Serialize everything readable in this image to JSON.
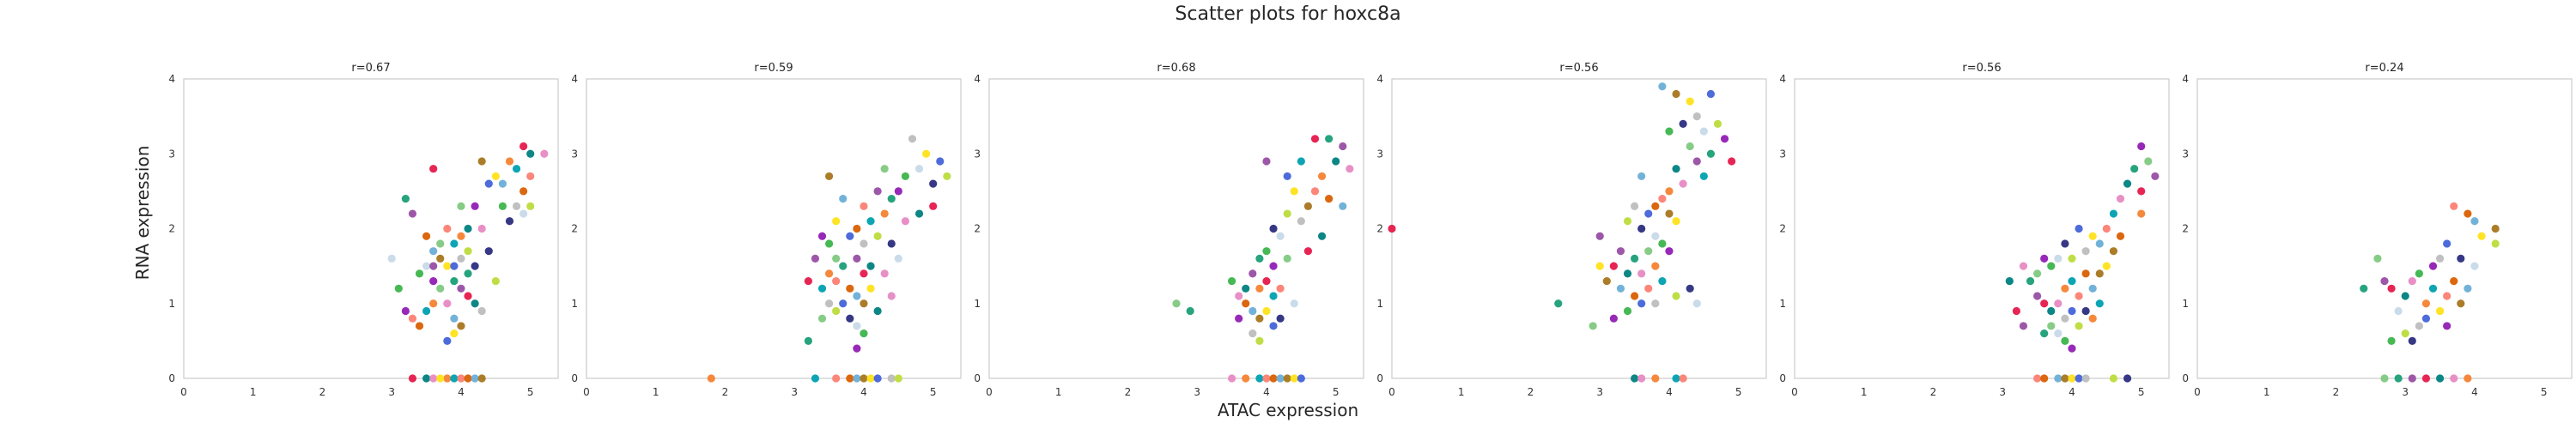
{
  "title": "Scatter plots for hoxc8a",
  "xlabel": "ATAC expression",
  "ylabel": "RNA expression",
  "palette": [
    "#e6194b",
    "#f58231",
    "#d95f02",
    "#ffe119",
    "#bcdc3c",
    "#3cb44b",
    "#1b9e77",
    "#008080",
    "#00a0b0",
    "#6baed6",
    "#4363d8",
    "#2b2d7f",
    "#911eb4",
    "#984ea3",
    "#e78ac3",
    "#fb8072",
    "#a6761d",
    "#bdbdbd",
    "#c7d9e8",
    "#7fc97f"
  ],
  "chart_data": [
    {
      "type": "scatter",
      "title": "r=0.67",
      "xlim": [
        0,
        5.4
      ],
      "ylim": [
        0,
        4
      ],
      "xticks": [
        0,
        1,
        2,
        3,
        4,
        5
      ],
      "yticks": [
        0,
        1,
        2,
        3,
        4
      ],
      "points": [
        [
          4.9,
          3.1
        ],
        [
          5.0,
          3.0
        ],
        [
          5.2,
          3.0
        ],
        [
          4.7,
          2.9
        ],
        [
          4.8,
          2.8
        ],
        [
          5.0,
          2.7
        ],
        [
          4.9,
          2.5
        ],
        [
          4.6,
          2.6
        ],
        [
          4.3,
          2.9
        ],
        [
          4.5,
          2.7
        ],
        [
          4.4,
          2.6
        ],
        [
          4.8,
          2.3
        ],
        [
          5.0,
          2.3
        ],
        [
          4.7,
          2.1
        ],
        [
          4.9,
          2.2
        ],
        [
          4.6,
          2.3
        ],
        [
          4.2,
          2.3
        ],
        [
          4.0,
          2.3
        ],
        [
          3.2,
          2.4
        ],
        [
          3.3,
          2.2
        ],
        [
          3.6,
          2.8
        ],
        [
          4.1,
          2.0
        ],
        [
          4.3,
          2.0
        ],
        [
          4.0,
          1.9
        ],
        [
          3.9,
          1.8
        ],
        [
          3.8,
          2.0
        ],
        [
          3.5,
          1.9
        ],
        [
          3.6,
          1.7
        ],
        [
          3.7,
          1.6
        ],
        [
          3.8,
          1.5
        ],
        [
          3.9,
          1.5
        ],
        [
          4.0,
          1.6
        ],
        [
          4.1,
          1.7
        ],
        [
          4.2,
          1.5
        ],
        [
          3.5,
          1.5
        ],
        [
          3.4,
          1.4
        ],
        [
          3.6,
          1.3
        ],
        [
          3.7,
          1.2
        ],
        [
          3.9,
          1.3
        ],
        [
          4.0,
          1.2
        ],
        [
          4.1,
          1.1
        ],
        [
          4.2,
          1.0
        ],
        [
          3.8,
          1.0
        ],
        [
          3.6,
          1.0
        ],
        [
          3.5,
          0.9
        ],
        [
          3.3,
          0.8
        ],
        [
          3.4,
          0.7
        ],
        [
          3.9,
          0.8
        ],
        [
          4.0,
          0.7
        ],
        [
          3.9,
          0.6
        ],
        [
          3.8,
          0.5
        ],
        [
          4.3,
          0.9
        ],
        [
          4.5,
          1.3
        ],
        [
          4.4,
          1.7
        ],
        [
          3.0,
          1.6
        ],
        [
          3.1,
          1.2
        ],
        [
          3.2,
          0.9
        ],
        [
          3.7,
          1.8
        ],
        [
          4.1,
          1.4
        ],
        [
          3.6,
          1.5
        ],
        [
          3.3,
          0.0
        ],
        [
          3.5,
          0.0
        ],
        [
          3.6,
          0.0
        ],
        [
          3.8,
          0.0
        ],
        [
          3.9,
          0.0
        ],
        [
          4.0,
          0.0
        ],
        [
          4.1,
          0.0
        ],
        [
          4.2,
          0.0
        ],
        [
          4.3,
          0.0
        ],
        [
          3.7,
          0.0
        ]
      ]
    },
    {
      "type": "scatter",
      "title": "r=0.59",
      "xlim": [
        0,
        5.4
      ],
      "ylim": [
        0,
        4
      ],
      "xticks": [
        0,
        1,
        2,
        3,
        4,
        5
      ],
      "yticks": [
        0,
        1,
        2,
        3,
        4
      ],
      "points": [
        [
          4.9,
          3.0
        ],
        [
          5.1,
          2.9
        ],
        [
          4.7,
          3.2
        ],
        [
          5.2,
          2.7
        ],
        [
          5.0,
          2.6
        ],
        [
          4.8,
          2.8
        ],
        [
          4.6,
          2.7
        ],
        [
          4.5,
          2.5
        ],
        [
          4.3,
          2.8
        ],
        [
          4.4,
          2.4
        ],
        [
          4.2,
          2.5
        ],
        [
          5.0,
          2.3
        ],
        [
          4.8,
          2.2
        ],
        [
          4.6,
          2.1
        ],
        [
          4.3,
          2.2
        ],
        [
          4.1,
          2.1
        ],
        [
          4.0,
          2.3
        ],
        [
          3.9,
          2.0
        ],
        [
          3.7,
          2.4
        ],
        [
          3.5,
          2.7
        ],
        [
          3.6,
          2.1
        ],
        [
          3.8,
          1.9
        ],
        [
          4.0,
          1.8
        ],
        [
          4.2,
          1.9
        ],
        [
          4.4,
          1.8
        ],
        [
          4.5,
          1.6
        ],
        [
          3.5,
          1.8
        ],
        [
          3.4,
          1.9
        ],
        [
          3.6,
          1.6
        ],
        [
          3.7,
          1.5
        ],
        [
          3.9,
          1.6
        ],
        [
          4.0,
          1.4
        ],
        [
          4.1,
          1.5
        ],
        [
          4.3,
          1.4
        ],
        [
          3.5,
          1.4
        ],
        [
          3.4,
          1.2
        ],
        [
          3.6,
          1.3
        ],
        [
          3.8,
          1.2
        ],
        [
          3.9,
          1.1
        ],
        [
          4.0,
          1.0
        ],
        [
          4.1,
          1.2
        ],
        [
          3.7,
          1.0
        ],
        [
          3.5,
          1.0
        ],
        [
          3.6,
          0.9
        ],
        [
          3.8,
          0.8
        ],
        [
          3.9,
          0.7
        ],
        [
          4.0,
          0.6
        ],
        [
          3.9,
          0.4
        ],
        [
          3.4,
          0.8
        ],
        [
          3.2,
          0.5
        ],
        [
          3.3,
          1.6
        ],
        [
          3.2,
          1.3
        ],
        [
          4.2,
          0.9
        ],
        [
          4.4,
          1.1
        ],
        [
          1.8,
          0.0
        ],
        [
          3.3,
          0.0
        ],
        [
          3.6,
          0.0
        ],
        [
          3.8,
          0.0
        ],
        [
          3.9,
          0.0
        ],
        [
          4.0,
          0.0
        ],
        [
          4.1,
          0.0
        ],
        [
          4.2,
          0.0
        ],
        [
          4.4,
          0.0
        ],
        [
          4.5,
          0.0
        ]
      ]
    },
    {
      "type": "scatter",
      "title": "r=0.68",
      "xlim": [
        0,
        5.4
      ],
      "ylim": [
        0,
        4
      ],
      "xticks": [
        0,
        1,
        2,
        3,
        4,
        5
      ],
      "yticks": [
        0,
        1,
        2,
        3,
        4
      ],
      "points": [
        [
          4.9,
          3.2
        ],
        [
          5.1,
          3.1
        ],
        [
          4.7,
          3.2
        ],
        [
          5.0,
          2.9
        ],
        [
          5.2,
          2.8
        ],
        [
          4.8,
          2.7
        ],
        [
          4.5,
          2.9
        ],
        [
          4.7,
          2.5
        ],
        [
          4.9,
          2.4
        ],
        [
          5.1,
          2.3
        ],
        [
          4.6,
          2.3
        ],
        [
          4.4,
          2.5
        ],
        [
          4.3,
          2.7
        ],
        [
          4.5,
          2.1
        ],
        [
          4.3,
          2.2
        ],
        [
          4.1,
          2.0
        ],
        [
          4.2,
          1.9
        ],
        [
          4.0,
          1.7
        ],
        [
          4.1,
          1.5
        ],
        [
          4.3,
          1.6
        ],
        [
          3.9,
          1.6
        ],
        [
          3.8,
          1.4
        ],
        [
          4.0,
          1.3
        ],
        [
          3.7,
          1.2
        ],
        [
          3.6,
          1.1
        ],
        [
          3.9,
          1.2
        ],
        [
          4.1,
          1.1
        ],
        [
          4.2,
          1.2
        ],
        [
          3.7,
          1.0
        ],
        [
          3.8,
          0.9
        ],
        [
          3.9,
          0.8
        ],
        [
          4.0,
          0.9
        ],
        [
          4.1,
          0.7
        ],
        [
          3.8,
          0.6
        ],
        [
          3.9,
          0.5
        ],
        [
          4.2,
          0.8
        ],
        [
          4.4,
          1.0
        ],
        [
          3.5,
          1.3
        ],
        [
          3.6,
          0.8
        ],
        [
          2.7,
          1.0
        ],
        [
          2.9,
          0.9
        ],
        [
          4.0,
          2.9
        ],
        [
          4.6,
          1.7
        ],
        [
          4.8,
          1.9
        ],
        [
          3.5,
          0.0
        ],
        [
          3.7,
          0.0
        ],
        [
          3.9,
          0.0
        ],
        [
          4.0,
          0.0
        ],
        [
          4.1,
          0.0
        ],
        [
          4.2,
          0.0
        ],
        [
          4.3,
          0.0
        ],
        [
          4.4,
          0.0
        ],
        [
          4.5,
          0.0
        ]
      ]
    },
    {
      "type": "scatter",
      "title": "r=0.56",
      "xlim": [
        0,
        5.4
      ],
      "ylim": [
        0,
        4
      ],
      "xticks": [
        0,
        1,
        2,
        3,
        4,
        5
      ],
      "yticks": [
        0,
        1,
        2,
        3,
        4
      ],
      "points": [
        [
          3.9,
          3.9
        ],
        [
          4.1,
          3.8
        ],
        [
          4.3,
          3.7
        ],
        [
          4.6,
          3.8
        ],
        [
          4.4,
          3.5
        ],
        [
          4.7,
          3.4
        ],
        [
          4.2,
          3.4
        ],
        [
          4.5,
          3.3
        ],
        [
          4.0,
          3.3
        ],
        [
          4.8,
          3.2
        ],
        [
          4.3,
          3.1
        ],
        [
          4.6,
          3.0
        ],
        [
          4.4,
          2.9
        ],
        [
          4.9,
          2.9
        ],
        [
          4.1,
          2.8
        ],
        [
          4.2,
          2.6
        ],
        [
          4.0,
          2.5
        ],
        [
          4.5,
          2.7
        ],
        [
          3.9,
          2.4
        ],
        [
          3.8,
          2.3
        ],
        [
          3.6,
          2.7
        ],
        [
          4.0,
          2.2
        ],
        [
          4.1,
          2.1
        ],
        [
          3.7,
          2.2
        ],
        [
          3.5,
          2.3
        ],
        [
          3.4,
          2.1
        ],
        [
          3.6,
          2.0
        ],
        [
          3.8,
          1.9
        ],
        [
          3.9,
          1.8
        ],
        [
          4.0,
          1.7
        ],
        [
          3.7,
          1.7
        ],
        [
          3.5,
          1.6
        ],
        [
          3.3,
          1.7
        ],
        [
          3.2,
          1.5
        ],
        [
          3.4,
          1.4
        ],
        [
          3.6,
          1.4
        ],
        [
          3.8,
          1.5
        ],
        [
          3.9,
          1.3
        ],
        [
          3.7,
          1.2
        ],
        [
          3.5,
          1.1
        ],
        [
          3.3,
          1.2
        ],
        [
          3.1,
          1.3
        ],
        [
          3.0,
          1.5
        ],
        [
          3.6,
          1.0
        ],
        [
          3.8,
          1.0
        ],
        [
          4.1,
          1.1
        ],
        [
          4.3,
          1.2
        ],
        [
          4.4,
          1.0
        ],
        [
          3.4,
          0.9
        ],
        [
          3.2,
          0.8
        ],
        [
          2.9,
          0.7
        ],
        [
          2.4,
          1.0
        ],
        [
          3.0,
          1.9
        ],
        [
          0.0,
          2.0
        ],
        [
          3.5,
          0.0
        ],
        [
          3.6,
          0.0
        ],
        [
          3.8,
          0.0
        ],
        [
          4.1,
          0.0
        ],
        [
          4.2,
          0.0
        ]
      ]
    },
    {
      "type": "scatter",
      "title": "r=0.56",
      "xlim": [
        0,
        5.4
      ],
      "ylim": [
        0,
        4
      ],
      "xticks": [
        0,
        1,
        2,
        3,
        4,
        5
      ],
      "yticks": [
        0,
        1,
        2,
        3,
        4
      ],
      "points": [
        [
          5.0,
          3.1
        ],
        [
          5.1,
          2.9
        ],
        [
          4.9,
          2.8
        ],
        [
          5.2,
          2.7
        ],
        [
          5.0,
          2.5
        ],
        [
          4.8,
          2.6
        ],
        [
          4.7,
          2.4
        ],
        [
          5.0,
          2.2
        ],
        [
          4.6,
          2.2
        ],
        [
          4.5,
          2.0
        ],
        [
          4.7,
          1.9
        ],
        [
          4.4,
          1.8
        ],
        [
          4.6,
          1.7
        ],
        [
          4.3,
          1.9
        ],
        [
          4.1,
          2.0
        ],
        [
          4.2,
          1.7
        ],
        [
          4.0,
          1.6
        ],
        [
          3.9,
          1.8
        ],
        [
          3.8,
          1.6
        ],
        [
          3.7,
          1.5
        ],
        [
          3.6,
          1.6
        ],
        [
          3.5,
          1.4
        ],
        [
          3.4,
          1.3
        ],
        [
          3.5,
          1.1
        ],
        [
          3.6,
          1.0
        ],
        [
          3.7,
          0.9
        ],
        [
          3.8,
          1.0
        ],
        [
          3.9,
          1.2
        ],
        [
          4.0,
          1.3
        ],
        [
          4.1,
          1.1
        ],
        [
          4.2,
          1.4
        ],
        [
          4.3,
          1.2
        ],
        [
          4.4,
          1.4
        ],
        [
          4.5,
          1.5
        ],
        [
          4.0,
          0.9
        ],
        [
          3.9,
          0.8
        ],
        [
          4.1,
          0.7
        ],
        [
          4.2,
          0.9
        ],
        [
          3.8,
          0.6
        ],
        [
          3.9,
          0.5
        ],
        [
          4.0,
          0.4
        ],
        [
          3.7,
          0.7
        ],
        [
          3.6,
          0.6
        ],
        [
          3.3,
          0.7
        ],
        [
          3.2,
          0.9
        ],
        [
          3.1,
          1.3
        ],
        [
          3.3,
          1.5
        ],
        [
          4.3,
          0.8
        ],
        [
          4.4,
          1.0
        ],
        [
          3.5,
          0.0
        ],
        [
          3.6,
          0.0
        ],
        [
          3.8,
          0.0
        ],
        [
          3.9,
          0.0
        ],
        [
          4.0,
          0.0
        ],
        [
          4.1,
          0.0
        ],
        [
          4.2,
          0.0
        ],
        [
          4.6,
          0.0
        ],
        [
          4.8,
          0.0
        ]
      ]
    },
    {
      "type": "scatter",
      "title": "r=0.24",
      "xlim": [
        0,
        5.4
      ],
      "ylim": [
        0,
        4
      ],
      "xticks": [
        0,
        1,
        2,
        3,
        4,
        5
      ],
      "yticks": [
        0,
        1,
        2,
        3,
        4
      ],
      "points": [
        [
          3.7,
          2.3
        ],
        [
          3.9,
          2.2
        ],
        [
          4.0,
          2.1
        ],
        [
          4.3,
          2.0
        ],
        [
          4.1,
          1.9
        ],
        [
          3.6,
          1.8
        ],
        [
          3.5,
          1.6
        ],
        [
          4.3,
          1.8
        ],
        [
          3.8,
          1.6
        ],
        [
          4.0,
          1.5
        ],
        [
          3.2,
          1.4
        ],
        [
          3.4,
          1.5
        ],
        [
          2.6,
          1.6
        ],
        [
          2.4,
          1.2
        ],
        [
          2.7,
          1.3
        ],
        [
          2.8,
          1.2
        ],
        [
          3.0,
          1.1
        ],
        [
          3.1,
          1.3
        ],
        [
          3.3,
          1.0
        ],
        [
          3.4,
          1.2
        ],
        [
          3.6,
          1.1
        ],
        [
          3.7,
          1.3
        ],
        [
          3.9,
          1.2
        ],
        [
          3.8,
          1.0
        ],
        [
          3.5,
          0.9
        ],
        [
          3.3,
          0.8
        ],
        [
          3.2,
          0.7
        ],
        [
          3.0,
          0.6
        ],
        [
          3.1,
          0.5
        ],
        [
          2.9,
          0.9
        ],
        [
          2.8,
          0.5
        ],
        [
          3.6,
          0.7
        ],
        [
          2.7,
          0.0
        ],
        [
          2.9,
          0.0
        ],
        [
          3.1,
          0.0
        ],
        [
          3.3,
          0.0
        ],
        [
          3.5,
          0.0
        ],
        [
          3.7,
          0.0
        ],
        [
          3.9,
          0.0
        ]
      ]
    }
  ]
}
